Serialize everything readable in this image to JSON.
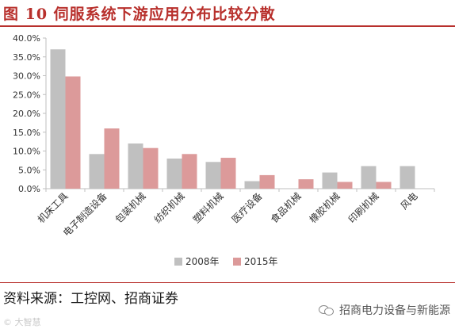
{
  "title": "图 10  伺服系统下游应用分布比较分散",
  "source": "资料来源：工控网、招商证券",
  "brand": "招商电力设备与新能源",
  "watermark": "© 大智慧",
  "colors": {
    "title": "#b8302c",
    "series_2008": "#c0c0c0",
    "series_2015": "#dc9a9a",
    "axis": "#bfbfbf",
    "text": "#333333"
  },
  "icons": [
    "wechat-icon"
  ],
  "chart_data": {
    "type": "bar",
    "categories": [
      "机床工具",
      "电子制造设备",
      "包装机械",
      "纺织机械",
      "塑料机械",
      "医疗设备",
      "食品机械",
      "橡胶机械",
      "印刷机械",
      "风电"
    ],
    "series": [
      {
        "name": "2008年",
        "values": [
          37.0,
          9.2,
          12.0,
          8.0,
          7.1,
          2.0,
          0,
          4.3,
          6.0,
          6.0
        ]
      },
      {
        "name": "2015年",
        "values": [
          29.8,
          16.0,
          10.8,
          9.2,
          8.2,
          3.6,
          2.5,
          1.8,
          1.8,
          0
        ]
      }
    ],
    "ylim": [
      0,
      40
    ],
    "yticks": [
      "0.0%",
      "5.0%",
      "10.0%",
      "15.0%",
      "20.0%",
      "25.0%",
      "30.0%",
      "35.0%",
      "40.0%"
    ],
    "y_unit": "%",
    "grid": false,
    "legend": "bottom-center",
    "xlabel": "",
    "ylabel": ""
  }
}
